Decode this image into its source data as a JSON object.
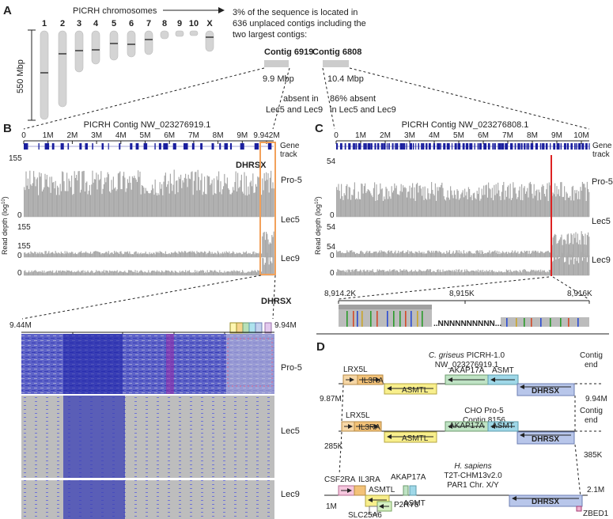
{
  "panels": {
    "a": "A",
    "b": "B",
    "c": "C",
    "d": "D"
  },
  "panel_a": {
    "title": "PICRH chromosomes",
    "chromosomes": [
      "1",
      "2",
      "3",
      "4",
      "5",
      "6",
      "7",
      "8",
      "9",
      "10",
      "X"
    ],
    "note_lines": [
      "3% of the sequence is located in",
      "636 unplaced contigs including the",
      "two largest contigs:"
    ],
    "scale_label": "550 Mbp",
    "contig1": {
      "name": "Contig 6919",
      "size": "9.9 Mbp",
      "note1": "absent in",
      "note2": "Lec5 and Lec9"
    },
    "contig2": {
      "name": "Contig 6808",
      "size": "10.4 Mbp",
      "note1": "86% absent",
      "note2": "in Lec5 and Lec9"
    }
  },
  "panel_b": {
    "title": "PICRH Contig NW_023276919.1",
    "ticks": [
      "0",
      "1M",
      "2M",
      "3M",
      "4M",
      "5M",
      "6M",
      "7M",
      "8M",
      "9M",
      "9.942M"
    ],
    "gene_track": [
      "Gene",
      "track"
    ],
    "gene_label": "DHRSX",
    "ylabel": "Read depth (log",
    "ylabel_sup": "10",
    "ymax": "155",
    "ymin": "0",
    "samples": [
      "Pro-5",
      "Lec5",
      "Lec9"
    ],
    "zoom_left": "9.44M",
    "zoom_right": "9.94M",
    "zoom_gene": "DHRSX"
  },
  "panel_c": {
    "title": "PICRH Contig NW_023276808.1",
    "ticks": [
      "0",
      "1M",
      "2M",
      "3M",
      "4M",
      "5M",
      "6M",
      "7M",
      "8M",
      "9M",
      "10M"
    ],
    "gene_track": [
      "Gene",
      "track"
    ],
    "ylabel": "Read depth (log",
    "ylabel_sup": "10",
    "ymax": "54",
    "ymin": "0",
    "samples": [
      "Pro-5",
      "Lec5",
      "Lec9"
    ],
    "zoom_ticks": [
      "8,914.2K",
      "8,915K",
      "8,916K"
    ],
    "ns": "..NNNNNNNNNN..."
  },
  "panel_d": {
    "row1": {
      "org1": "C. griseus",
      "org2": " PICRH-1.0",
      "acc": "NW_023276919.1",
      "left": "9.87M",
      "right": "9.94M",
      "end1": "Contig",
      "end2": "end"
    },
    "row2": {
      "org": "CHO Pro-5",
      "acc": "Contig 8156",
      "left": "285K",
      "right": "385K",
      "end1": "Contig",
      "end2": "end"
    },
    "row3": {
      "org1": "H. sapiens",
      "org2": "T2T-CHM13v2.0",
      "org3": "PAR1 Chr. X/Y",
      "left": "1M",
      "right": "2.1M"
    },
    "genes": {
      "lrx5l": "LRX5L",
      "il3ra": "IL3RA",
      "asmtl": "ASMTL",
      "akap17a": "AKAP17A",
      "asmt": "ASMT",
      "dhrsx": "DHRSX",
      "csf2ra": "CSF2RA",
      "slc25a6": "SLC25A6",
      "p2ry8": "P2RY8",
      "zbed1": "ZBED1"
    }
  }
}
